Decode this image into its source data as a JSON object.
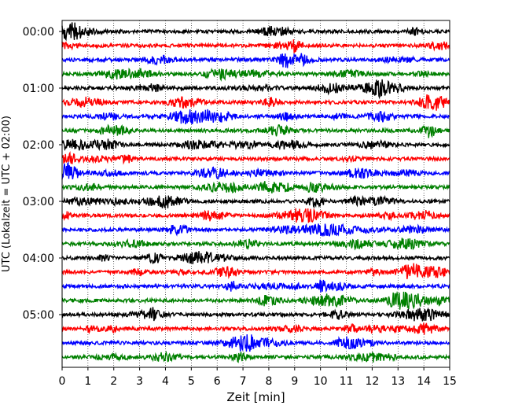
{
  "chart_data": {
    "type": "line",
    "title": "",
    "xlabel": "Zeit  [min]",
    "ylabel": "UTC (Lokalzeit = UTC + 02:00)",
    "xlim": [
      0,
      15
    ],
    "x_ticks": [
      "0",
      "1",
      "2",
      "3",
      "4",
      "5",
      "6",
      "7",
      "8",
      "9",
      "10",
      "11",
      "12",
      "13",
      "14",
      "15"
    ],
    "y_ticks": [
      "00:00",
      "01:00",
      "02:00",
      "03:00",
      "04:00",
      "05:00"
    ],
    "vertical_grid": "dotted",
    "trace_minutes_per_row": 15,
    "row_count": 24,
    "row_color_cycle": [
      "#000000",
      "#ff0000",
      "#0000ff",
      "#008000"
    ],
    "series": [
      {
        "start": "00:00",
        "color": "#000000"
      },
      {
        "start": "00:15",
        "color": "#ff0000"
      },
      {
        "start": "00:30",
        "color": "#0000ff"
      },
      {
        "start": "00:45",
        "color": "#008000"
      },
      {
        "start": "01:00",
        "color": "#000000"
      },
      {
        "start": "01:15",
        "color": "#ff0000"
      },
      {
        "start": "01:30",
        "color": "#0000ff"
      },
      {
        "start": "01:45",
        "color": "#008000"
      },
      {
        "start": "02:00",
        "color": "#000000"
      },
      {
        "start": "02:15",
        "color": "#ff0000"
      },
      {
        "start": "02:30",
        "color": "#0000ff"
      },
      {
        "start": "02:45",
        "color": "#008000"
      },
      {
        "start": "03:00",
        "color": "#000000"
      },
      {
        "start": "03:15",
        "color": "#ff0000"
      },
      {
        "start": "03:30",
        "color": "#0000ff"
      },
      {
        "start": "03:45",
        "color": "#008000"
      },
      {
        "start": "04:00",
        "color": "#000000"
      },
      {
        "start": "04:15",
        "color": "#ff0000"
      },
      {
        "start": "04:30",
        "color": "#0000ff"
      },
      {
        "start": "04:45",
        "color": "#008000"
      },
      {
        "start": "05:00",
        "color": "#000000"
      },
      {
        "start": "05:15",
        "color": "#ff0000"
      },
      {
        "start": "05:30",
        "color": "#0000ff"
      },
      {
        "start": "05:45",
        "color": "#008000"
      }
    ]
  }
}
